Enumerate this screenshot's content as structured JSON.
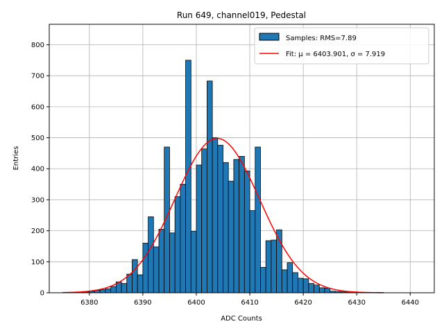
{
  "chart_data": {
    "type": "bar",
    "title": "Run 649, channel019, Pedestal",
    "xlabel": "ADC Counts",
    "ylabel": "Entries",
    "xlim": [
      6372.5,
      6444.5
    ],
    "ylim": [
      0,
      866
    ],
    "xticks": [
      6380,
      6390,
      6400,
      6410,
      6420,
      6430,
      6440
    ],
    "yticks": [
      0,
      100,
      200,
      300,
      400,
      500,
      600,
      700,
      800
    ],
    "grid": true,
    "legend_position": "top-right",
    "colors": {
      "bars": "#1f77b4",
      "bar_edge": "#000000",
      "fit": "#ff0000",
      "grid": "#b0b0b0"
    },
    "series": [
      {
        "name": "Samples: RMS=7.89",
        "kind": "histogram",
        "bin_width": 1,
        "bin_left_edges": [
          6375,
          6376,
          6377,
          6378,
          6379,
          6380,
          6381,
          6382,
          6383,
          6384,
          6385,
          6386,
          6387,
          6388,
          6389,
          6390,
          6391,
          6392,
          6393,
          6394,
          6395,
          6396,
          6397,
          6398,
          6399,
          6400,
          6401,
          6402,
          6403,
          6404,
          6405,
          6406,
          6407,
          6408,
          6409,
          6410,
          6411,
          6412,
          6413,
          6414,
          6415,
          6416,
          6417,
          6418,
          6419,
          6420,
          6421,
          6422,
          6423,
          6424,
          6425,
          6426,
          6427,
          6428,
          6429,
          6430,
          6431,
          6432,
          6433,
          6434
        ],
        "values": [
          1,
          1,
          2,
          2,
          3,
          5,
          8,
          10,
          13,
          20,
          35,
          30,
          60,
          107,
          58,
          160,
          245,
          148,
          205,
          470,
          193,
          310,
          350,
          750,
          198,
          412,
          464,
          683,
          500,
          476,
          420,
          360,
          430,
          440,
          393,
          265,
          470,
          82,
          168,
          170,
          203,
          74,
          97,
          65,
          47,
          45,
          30,
          25,
          16,
          15,
          5,
          4,
          3,
          2,
          2,
          1,
          1,
          1,
          1,
          1
        ]
      },
      {
        "name": "Fit: μ = 6403.901, σ = 7.919",
        "kind": "gaussian",
        "mu": 6403.901,
        "sigma": 7.919,
        "amplitude": 498,
        "x_range": [
          6375,
          6435
        ]
      }
    ]
  }
}
